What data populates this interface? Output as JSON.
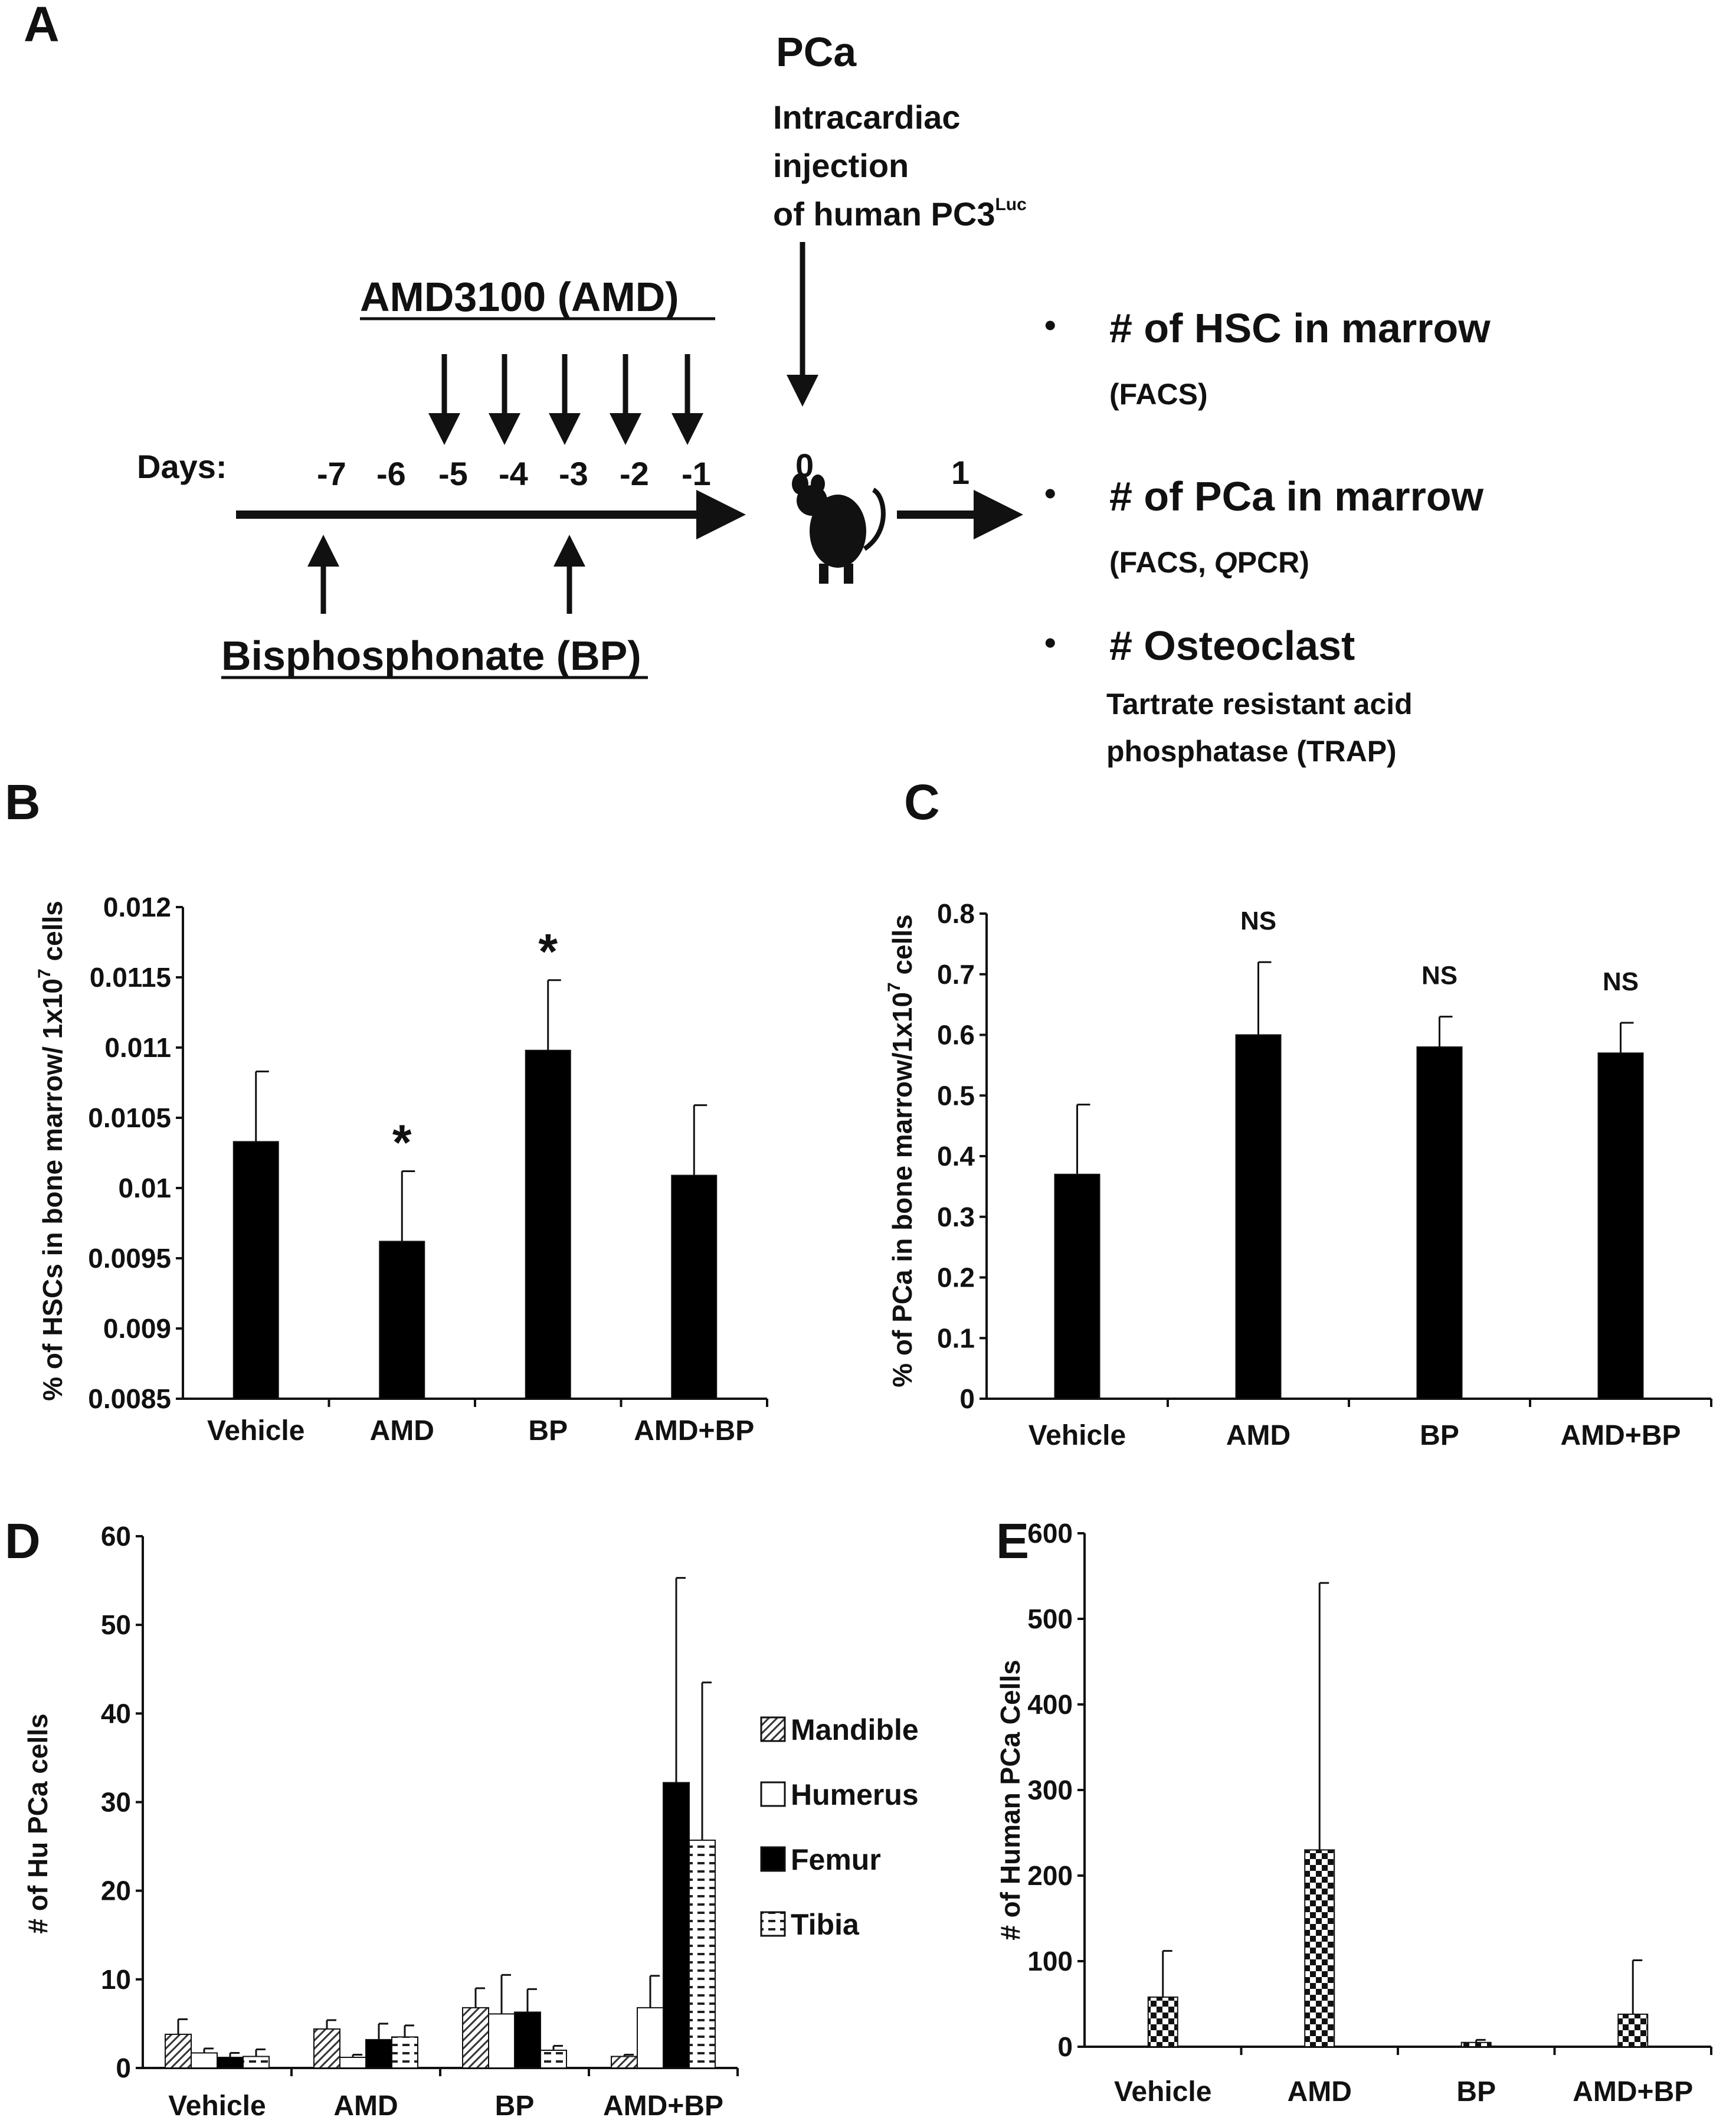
{
  "panel_a": {
    "letter": "A",
    "pca_title": "PCa",
    "injection_line1": "Intracardiac",
    "injection_line2": "injection",
    "injection_line3": "of human PC3",
    "injection_sup": "Luc",
    "amd_title": "AMD3100 (AMD)",
    "amd_days": [
      "-5",
      "-4",
      "-3",
      "-2",
      "-1"
    ],
    "days_label": "Days:",
    "day_ticks": [
      "-7",
      "-6",
      "-5",
      "-4",
      "-3",
      "-2",
      "-1"
    ],
    "day_zero": "0",
    "day_one": "1",
    "bp_title": "Bisphosphonate (BP)",
    "bp_days": [
      "-7",
      "-3"
    ],
    "bullet": "•",
    "outcome1_title": "# of HSC in marrow",
    "outcome1_sub": "(FACS)",
    "outcome2_title": "# of PCa in marrow",
    "outcome2_sub_pre": "(FACS, ",
    "outcome2_sub_italic": "Q",
    "outcome2_sub_post": "PCR)",
    "outcome3_title": "# Osteoclast",
    "outcome3_line1": "Tartrate resistant acid",
    "outcome3_line2": "phosphatase (TRAP)"
  },
  "panel_b_letter": "B",
  "panel_b_ylabel_pre": "% of HSCs in bone marrow/ 1x10",
  "panel_b_ylabel_sup": "7",
  "panel_b_ylabel_post": " cells",
  "panel_c_letter": "C",
  "panel_c_ylabel_pre": "% of PCa in bone marrow/1x10",
  "panel_c_ylabel_sup": "7",
  "panel_c_ylabel_post": " cells",
  "panel_d_letter": "D",
  "panel_d_ylabel": "# of Hu PCa cells",
  "panel_e_letter": "E",
  "panel_e_ylabel": "# of Human PCa Cells",
  "colors": {
    "bar": "#000000",
    "axis": "#111111",
    "background": "#ffffff"
  },
  "chart_data": [
    {
      "id": "B",
      "type": "bar",
      "categories": [
        "Vehicle",
        "AMD",
        "BP",
        "AMD+BP"
      ],
      "values": [
        0.01033,
        0.00962,
        0.01098,
        0.01009
      ],
      "errors": [
        0.0005,
        0.0005,
        0.0005,
        0.0005
      ],
      "annotations": [
        "",
        "*",
        "*",
        ""
      ],
      "ylim": [
        0.0085,
        0.012
      ],
      "yticks": [
        "0.012",
        "0.0115",
        "0.011",
        "0.0105",
        "0.01",
        "0.0095",
        "0.009",
        "0.0085"
      ],
      "ylabel": "% of HSCs in bone marrow/ 1x10^7 cells"
    },
    {
      "id": "C",
      "type": "bar",
      "categories": [
        "Vehicle",
        "AMD",
        "BP",
        "AMD+BP"
      ],
      "values": [
        0.37,
        0.6,
        0.58,
        0.57
      ],
      "errors": [
        0.115,
        0.12,
        0.05,
        0.05
      ],
      "annotations": [
        "",
        "NS",
        "NS",
        "NS"
      ],
      "ylim": [
        0,
        0.8
      ],
      "yticks": [
        "0.8",
        "0.7",
        "0.6",
        "0.5",
        "0.4",
        "0.3",
        "0.2",
        "0.1",
        "0"
      ],
      "ylabel": "% of PCa in bone marrow/1x10^7 cells"
    },
    {
      "id": "D",
      "type": "bar",
      "categories": [
        "Vehicle",
        "AMD",
        "BP",
        "AMD+BP"
      ],
      "series": [
        {
          "name": "Mandible",
          "pattern": "hatch",
          "values": [
            3.8,
            4.4,
            6.8,
            1.3
          ],
          "errors": [
            1.7,
            1.0,
            2.2,
            0.2
          ]
        },
        {
          "name": "Humerus",
          "pattern": "white",
          "values": [
            1.7,
            1.2,
            6.1,
            6.8
          ],
          "errors": [
            0.5,
            0.3,
            4.4,
            3.6
          ]
        },
        {
          "name": "Femur",
          "pattern": "black",
          "values": [
            1.2,
            3.2,
            6.3,
            32.2
          ],
          "errors": [
            0.5,
            1.8,
            2.6,
            23.1
          ]
        },
        {
          "name": "Tibia",
          "pattern": "dash",
          "values": [
            1.3,
            3.5,
            2.0,
            25.7
          ],
          "errors": [
            0.8,
            1.3,
            0.5,
            17.8
          ]
        }
      ],
      "ylim": [
        0,
        60
      ],
      "yticks": [
        "60",
        "50",
        "40",
        "30",
        "20",
        "10",
        "0"
      ],
      "legend": "right",
      "ylabel": "# of Hu PCa cells"
    },
    {
      "id": "E",
      "type": "bar",
      "categories": [
        "Vehicle",
        "AMD",
        "BP",
        "AMD+BP"
      ],
      "values": [
        58,
        230,
        5,
        38
      ],
      "errors": [
        54,
        312,
        3,
        63
      ],
      "pattern": "checker",
      "ylim": [
        0,
        600
      ],
      "yticks": [
        "600",
        "500",
        "400",
        "300",
        "200",
        "100",
        "0"
      ],
      "ylabel": "# of Human PCa Cells"
    }
  ]
}
